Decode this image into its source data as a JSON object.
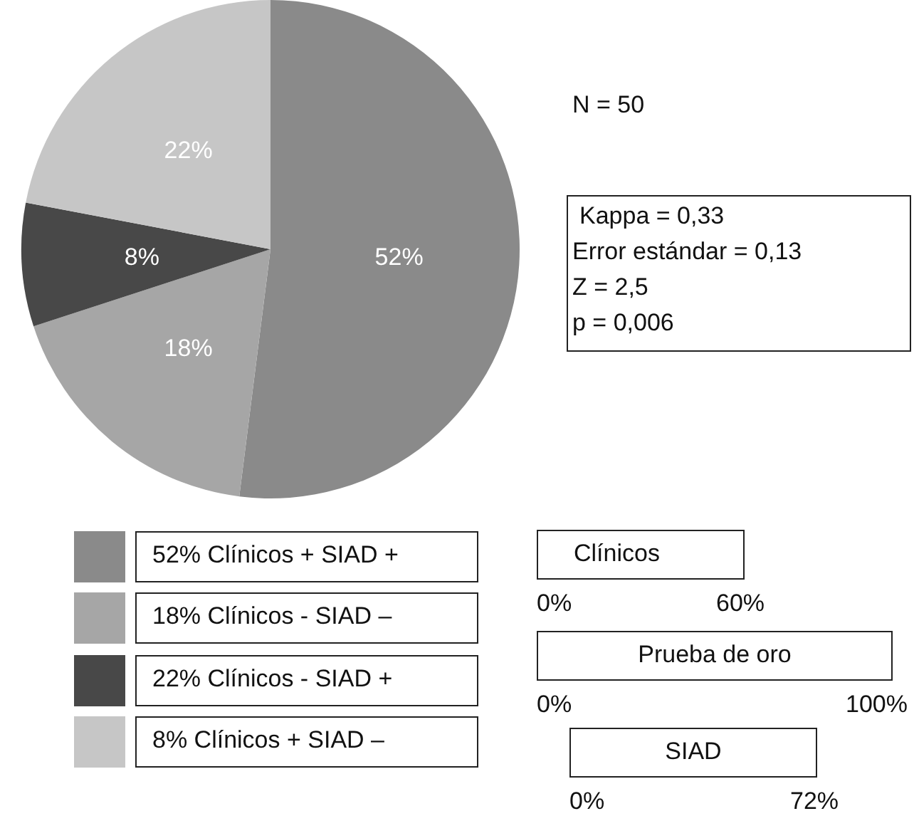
{
  "chart_data": {
    "type": "pie",
    "categories": [
      "52% Clínicos + SIAD +",
      "18% Clínicos - SIAD –",
      "22% Clínicos - SIAD +",
      "8% Clínicos + SIAD –"
    ],
    "values": [
      52,
      18,
      8,
      22
    ],
    "colors": [
      "#8a8a8a",
      "#a6a6a6",
      "#484848",
      "#c6c6c6"
    ],
    "value_labels": [
      "52%",
      "18%",
      "8%",
      "22%"
    ],
    "legend": "bottom left",
    "annotations": [
      "N = 50",
      "Kappa = 0,33",
      "Error estándar = 0,13",
      "Z = 2,5",
      "p = 0,006",
      "Clínicos",
      "0%",
      "60%",
      "Prueba de oro",
      "0%",
      "100%",
      "SIAD",
      "0%",
      "72%"
    ]
  }
}
